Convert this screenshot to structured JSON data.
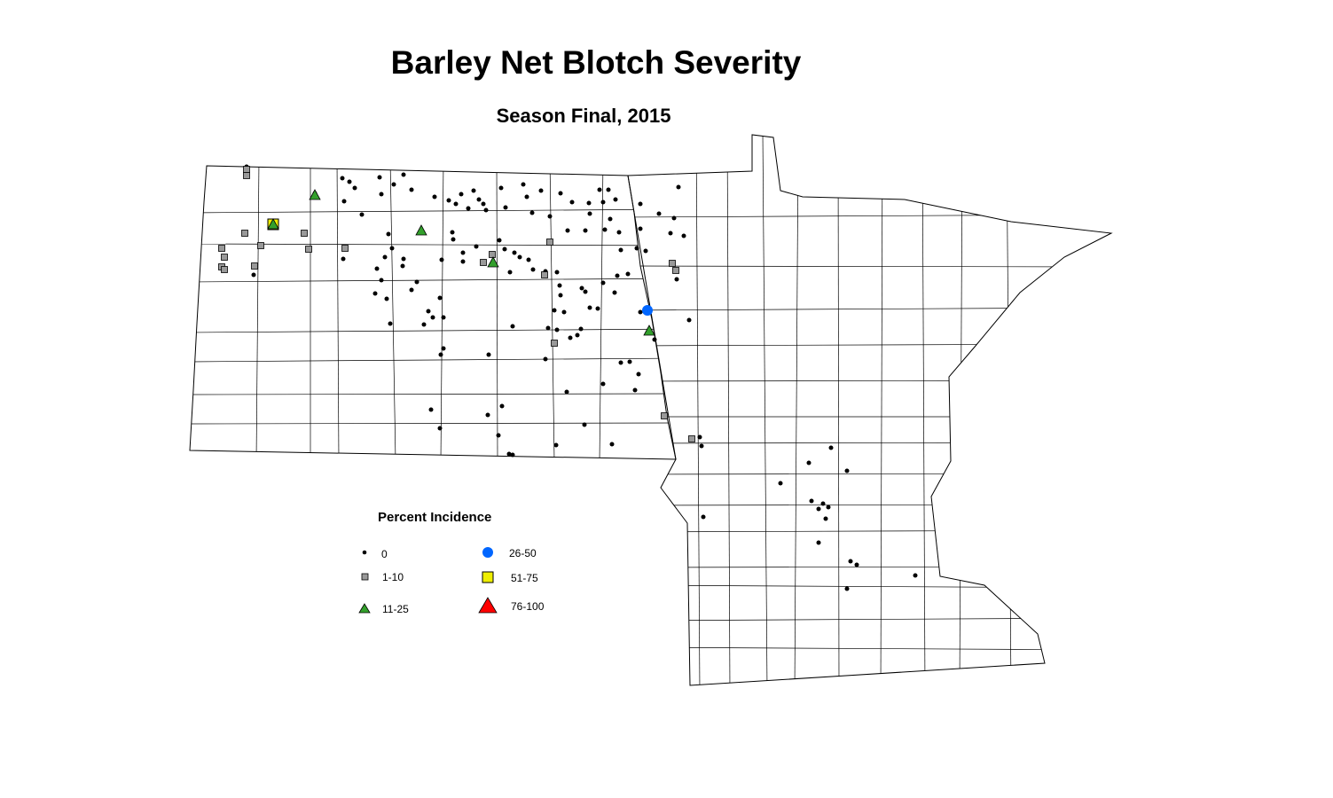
{
  "title": "Barley Net Blotch Severity",
  "subtitle": "Season Final, 2015",
  "legend": {
    "title": "Percent Incidence",
    "items": [
      {
        "label": "0",
        "symbol": "small-dot",
        "color": "#000000"
      },
      {
        "label": "1-10",
        "symbol": "square",
        "color": "#999999"
      },
      {
        "label": "11-25",
        "symbol": "triangle",
        "color": "#33a02c"
      },
      {
        "label": "26-50",
        "symbol": "circle",
        "color": "#0066ff"
      },
      {
        "label": "51-75",
        "symbol": "square",
        "color": "#eeee00"
      },
      {
        "label": "76-100",
        "symbol": "triangle",
        "color": "#ff0000"
      }
    ]
  },
  "map": {
    "regions": [
      "North Dakota",
      "Minnesota"
    ],
    "boundaries": "counties"
  }
}
